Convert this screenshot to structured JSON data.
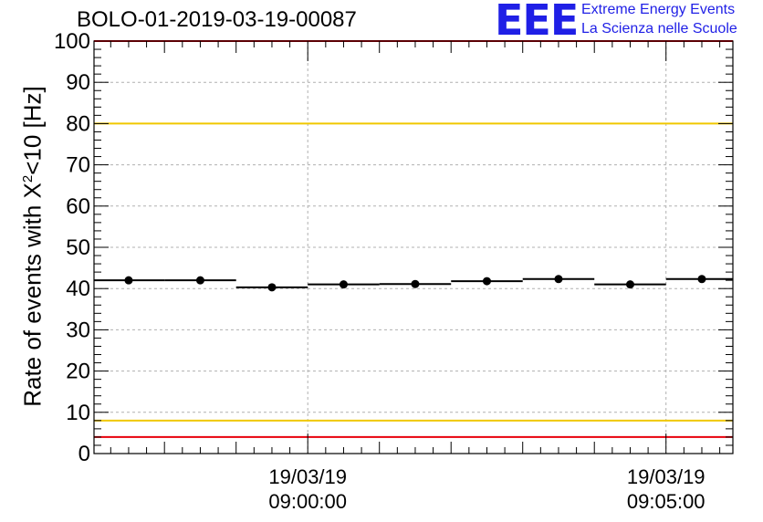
{
  "title": "BOLO-01-2019-03-19-00087",
  "logo": {
    "mark": "EEE",
    "line1": "Extreme Energy Events",
    "line2": "La Scienza nelle Scuole"
  },
  "chart_data": {
    "type": "scatter",
    "title": "BOLO-01-2019-03-19-00087",
    "xlabel": "",
    "ylabel": "Rate of events with X^2<10 [Hz]",
    "ylabel_parts": {
      "before": "Rate of events with X",
      "sup": "2",
      "after": "<10 [Hz]"
    },
    "ylim": [
      0,
      100
    ],
    "yticks": [
      0,
      10,
      20,
      30,
      40,
      50,
      60,
      70,
      80,
      90,
      100
    ],
    "xlim": [
      "2019-03-19 08:57:01",
      "2019-03-19 09:05:56"
    ],
    "x_major_ticks": [
      {
        "time": "2019-03-19 09:00:00",
        "label_date": "19/03/19",
        "label_time": "09:00:00"
      },
      {
        "time": "2019-03-19 09:05:00",
        "label_date": "19/03/19",
        "label_time": "09:05:00"
      }
    ],
    "grid": true,
    "series": [
      {
        "x": [
          "08:57:30",
          "08:58:30",
          "08:59:30",
          "09:00:30",
          "09:01:30",
          "09:02:30",
          "09:03:30",
          "09:04:30",
          "09:05:30"
        ],
        "bin_edges": [
          "08:57:00",
          "08:58:00",
          "08:59:00",
          "09:00:00",
          "09:01:00",
          "09:02:00",
          "09:03:00",
          "09:04:00",
          "09:05:00",
          "09:06:00"
        ],
        "values": [
          42.0,
          42.0,
          40.3,
          41.0,
          41.1,
          41.8,
          42.3,
          41.0,
          42.3
        ]
      }
    ],
    "reference_lines": [
      {
        "y": 100,
        "color": "#e8000b"
      },
      {
        "y": 80,
        "color": "#f0c800"
      },
      {
        "y": 8,
        "color": "#f0c800"
      },
      {
        "y": 4,
        "color": "#e8000b"
      }
    ]
  }
}
